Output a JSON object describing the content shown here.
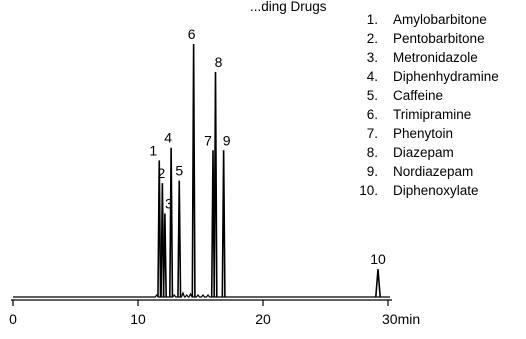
{
  "chart_data": {
    "type": "line",
    "title_partial": "...ding Drugs",
    "x_axis": {
      "unit": "min",
      "range": [
        0,
        30
      ],
      "ticks": [
        0,
        10,
        20,
        30
      ],
      "tick_labels": [
        "0",
        "10",
        "20",
        "30min"
      ]
    },
    "grid": false,
    "legend_placement": "top-right",
    "peaks": [
      {
        "label": "1",
        "name": "Amylobarbitone",
        "rt": 11.7,
        "height": 0.54
      },
      {
        "label": "2",
        "name": "Pentobarbitone",
        "rt": 11.95,
        "height": 0.45
      },
      {
        "label": "3",
        "name": "Metronidazole",
        "rt": 12.15,
        "height": 0.33
      },
      {
        "label": "4",
        "name": "Diphenhydramine",
        "rt": 12.65,
        "height": 0.59
      },
      {
        "label": "5",
        "name": "Caffeine",
        "rt": 13.3,
        "height": 0.46
      },
      {
        "label": "6",
        "name": "Trimipramine",
        "rt": 14.45,
        "height": 1.0
      },
      {
        "label": "7",
        "name": "Phenytoin",
        "rt": 16.0,
        "height": 0.58
      },
      {
        "label": "8",
        "name": "Diazepam",
        "rt": 16.2,
        "height": 0.89
      },
      {
        "label": "9",
        "name": "Nordiazepam",
        "rt": 16.85,
        "height": 0.58
      },
      {
        "label": "10",
        "name": "Diphenoxylate",
        "rt": 29.2,
        "height": 0.11
      }
    ]
  }
}
